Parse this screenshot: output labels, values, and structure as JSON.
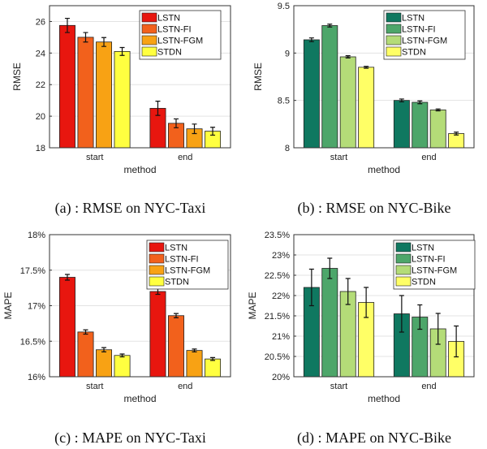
{
  "chart_data": [
    {
      "type": "bar",
      "caption": "(a) : RMSE on NYC-Taxi",
      "xlabel": "method",
      "ylabel": "RMSE",
      "categories": [
        "start",
        "end"
      ],
      "ylim": [
        18,
        27
      ],
      "yticks": [
        "18",
        "20",
        "22",
        "24",
        "26"
      ],
      "grid": true,
      "legend_position": "top-right",
      "series": [
        {
          "name": "LSTN",
          "color": "#e8160f",
          "values": [
            25.75,
            20.5
          ],
          "errors": [
            0.45,
            0.45
          ]
        },
        {
          "name": "LSTN-FI",
          "color": "#f2611c",
          "values": [
            25.0,
            19.55
          ],
          "errors": [
            0.3,
            0.28
          ]
        },
        {
          "name": "LSTN-FGM",
          "color": "#f8a214",
          "values": [
            24.7,
            19.2
          ],
          "errors": [
            0.28,
            0.3
          ]
        },
        {
          "name": "STDN",
          "color": "#ffff40",
          "values": [
            24.1,
            19.05
          ],
          "errors": [
            0.25,
            0.25
          ]
        }
      ]
    },
    {
      "type": "bar",
      "caption": "(b) : RMSE on NYC-Bike",
      "xlabel": "method",
      "ylabel": "RMSE",
      "categories": [
        "start",
        "end"
      ],
      "ylim": [
        8,
        9.5
      ],
      "yticks": [
        "8",
        "8.5",
        "9",
        "9.5"
      ],
      "grid": true,
      "legend_position": "top-right",
      "series": [
        {
          "name": "LSTN",
          "color": "#0f7860",
          "values": [
            9.14,
            8.5
          ],
          "errors": [
            0.02,
            0.015
          ]
        },
        {
          "name": "LSTN-FI",
          "color": "#4da66a",
          "values": [
            9.29,
            8.48
          ],
          "errors": [
            0.015,
            0.015
          ]
        },
        {
          "name": "LSTN-FGM",
          "color": "#b4dc78",
          "values": [
            8.96,
            8.4
          ],
          "errors": [
            0.012,
            0.01
          ]
        },
        {
          "name": "STDN",
          "color": "#ffff66",
          "values": [
            8.85,
            8.15
          ],
          "errors": [
            0.01,
            0.015
          ]
        }
      ]
    },
    {
      "type": "bar",
      "caption": "(c) : MAPE on NYC-Taxi",
      "xlabel": "method",
      "ylabel": "MAPE",
      "categories": [
        "start",
        "end"
      ],
      "ylim": [
        16,
        18
      ],
      "yticks": [
        "16%",
        "16.5%",
        "17%",
        "17.5%",
        "18%"
      ],
      "grid": true,
      "legend_position": "top-right",
      "series": [
        {
          "name": "LSTN",
          "color": "#e8160f",
          "values": [
            17.4,
            17.2
          ],
          "errors": [
            0.04,
            0.04
          ]
        },
        {
          "name": "LSTN-FI",
          "color": "#f2611c",
          "values": [
            16.63,
            16.86
          ],
          "errors": [
            0.03,
            0.03
          ]
        },
        {
          "name": "LSTN-FGM",
          "color": "#f8a214",
          "values": [
            16.38,
            16.37
          ],
          "errors": [
            0.03,
            0.02
          ]
        },
        {
          "name": "STDN",
          "color": "#ffff40",
          "values": [
            16.3,
            16.25
          ],
          "errors": [
            0.02,
            0.02
          ]
        }
      ]
    },
    {
      "type": "bar",
      "caption": "(d) : MAPE on NYC-Bike",
      "xlabel": "method",
      "ylabel": "MAPE",
      "categories": [
        "start",
        "end"
      ],
      "ylim": [
        20,
        23.5
      ],
      "yticks": [
        "20%",
        "20.5%",
        "21%",
        "21.5%",
        "22%",
        "22.5%",
        "23%",
        "23.5%"
      ],
      "grid": true,
      "legend_position": "top-right",
      "series": [
        {
          "name": "LSTN",
          "color": "#0f7860",
          "values": [
            22.2,
            21.55
          ],
          "errors": [
            0.45,
            0.45
          ]
        },
        {
          "name": "LSTN-FI",
          "color": "#4da66a",
          "values": [
            22.67,
            21.47
          ],
          "errors": [
            0.25,
            0.3
          ]
        },
        {
          "name": "LSTN-FGM",
          "color": "#b4dc78",
          "values": [
            22.1,
            21.18
          ],
          "errors": [
            0.32,
            0.38
          ]
        },
        {
          "name": "STDN",
          "color": "#ffff66",
          "values": [
            21.83,
            20.87
          ],
          "errors": [
            0.37,
            0.38
          ]
        }
      ]
    }
  ]
}
